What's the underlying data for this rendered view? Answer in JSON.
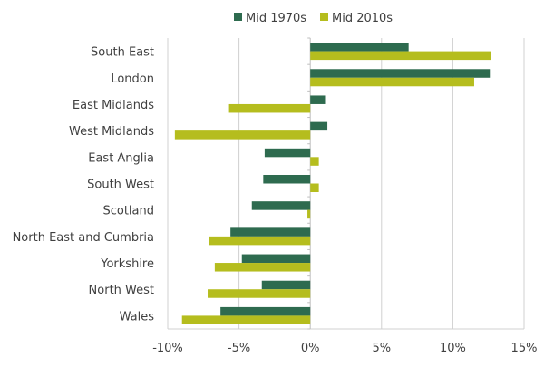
{
  "chart_data": {
    "type": "bar",
    "orientation": "horizontal",
    "categories": [
      "South East",
      "London",
      "East Midlands",
      "West Midlands",
      "East Anglia",
      "South West",
      "Scotland",
      "North East and Cumbria",
      "Yorkshire",
      "North West",
      "Wales"
    ],
    "series": [
      {
        "name": "Mid 1970s",
        "color": "#2e6b4f",
        "values": [
          6.9,
          12.6,
          1.1,
          1.2,
          -3.2,
          -3.3,
          -4.1,
          -5.6,
          -4.8,
          -3.4,
          -6.3
        ]
      },
      {
        "name": "Mid 2010s",
        "color": "#b5bd1e",
        "values": [
          12.7,
          11.5,
          -5.7,
          -9.5,
          0.6,
          0.6,
          -0.2,
          -7.1,
          -6.7,
          -7.2,
          -9.0
        ]
      }
    ],
    "xlim": [
      -10,
      15
    ],
    "xticks": [
      -10,
      -5,
      0,
      5,
      10,
      15
    ],
    "xtick_labels": [
      "-10%",
      "-5%",
      "0%",
      "5%",
      "10%",
      "15%"
    ],
    "grid": "vertical",
    "legend_position": "top"
  }
}
